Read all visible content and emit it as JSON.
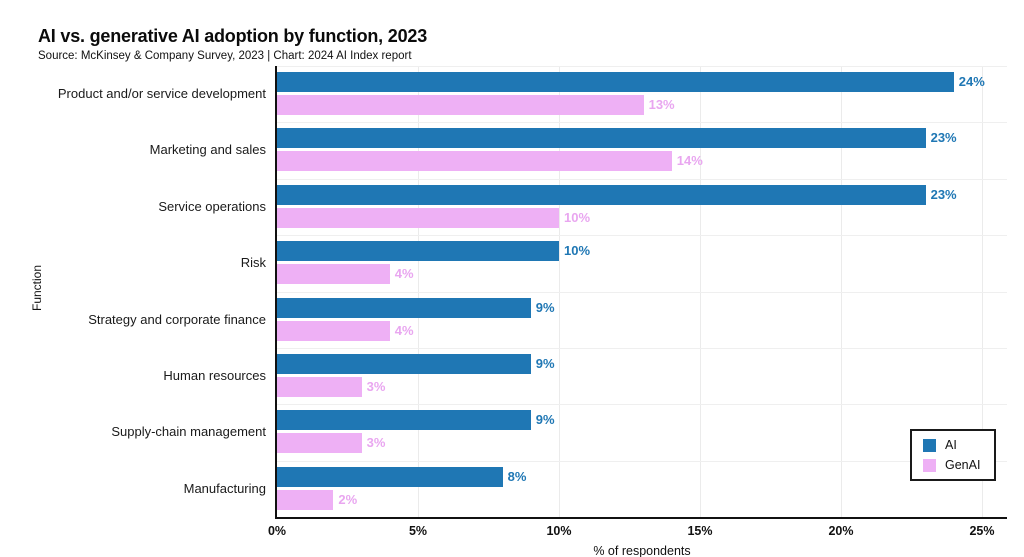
{
  "header": {
    "title": "AI vs. generative AI adoption by function, 2023",
    "subtitle": "Source: McKinsey & Company Survey, 2023 | Chart: 2024 AI Index report"
  },
  "colors": {
    "ai_blue": "#1f77b4",
    "genai_pink": "#eeb0f5",
    "genai_label_pink": "#e9a6f0",
    "axis": "#111111",
    "grid": "#ebebeb"
  },
  "chart_data": {
    "type": "bar",
    "orientation": "horizontal",
    "title": "AI vs. generative AI adoption by function, 2023",
    "subtitle": "Source: McKinsey & Company Survey, 2023 | Chart: 2024 AI Index report",
    "xlabel": "% of respondents",
    "ylabel": "Function",
    "xlim": [
      0,
      25
    ],
    "xticks": [
      {
        "value": 0,
        "label": "0%"
      },
      {
        "value": 5,
        "label": "5%"
      },
      {
        "value": 10,
        "label": "10%"
      },
      {
        "value": 15,
        "label": "15%"
      },
      {
        "value": 20,
        "label": "20%"
      },
      {
        "value": 25,
        "label": "25%"
      }
    ],
    "grid": true,
    "legend_position": "lower right",
    "categories": [
      "Product and/or service development",
      "Marketing and sales",
      "Service operations",
      "Risk",
      "Strategy and corporate finance",
      "Human resources",
      "Supply-chain management",
      "Manufacturing"
    ],
    "series": [
      {
        "name": "AI",
        "color": "#1f77b4",
        "label_color": "#1f77b4",
        "values": [
          24,
          23,
          23,
          10,
          9,
          9,
          9,
          8
        ],
        "labels": [
          "24%",
          "23%",
          "23%",
          "10%",
          "9%",
          "9%",
          "9%",
          "8%"
        ]
      },
      {
        "name": "GenAI",
        "color": "#eeb0f5",
        "label_color": "#e9a6f0",
        "values": [
          13,
          14,
          10,
          4,
          4,
          3,
          3,
          2
        ],
        "labels": [
          "13%",
          "14%",
          "10%",
          "4%",
          "4%",
          "3%",
          "3%",
          "2%"
        ]
      }
    ]
  },
  "legend": {
    "items": [
      {
        "label": "AI"
      },
      {
        "label": "GenAI"
      }
    ]
  }
}
